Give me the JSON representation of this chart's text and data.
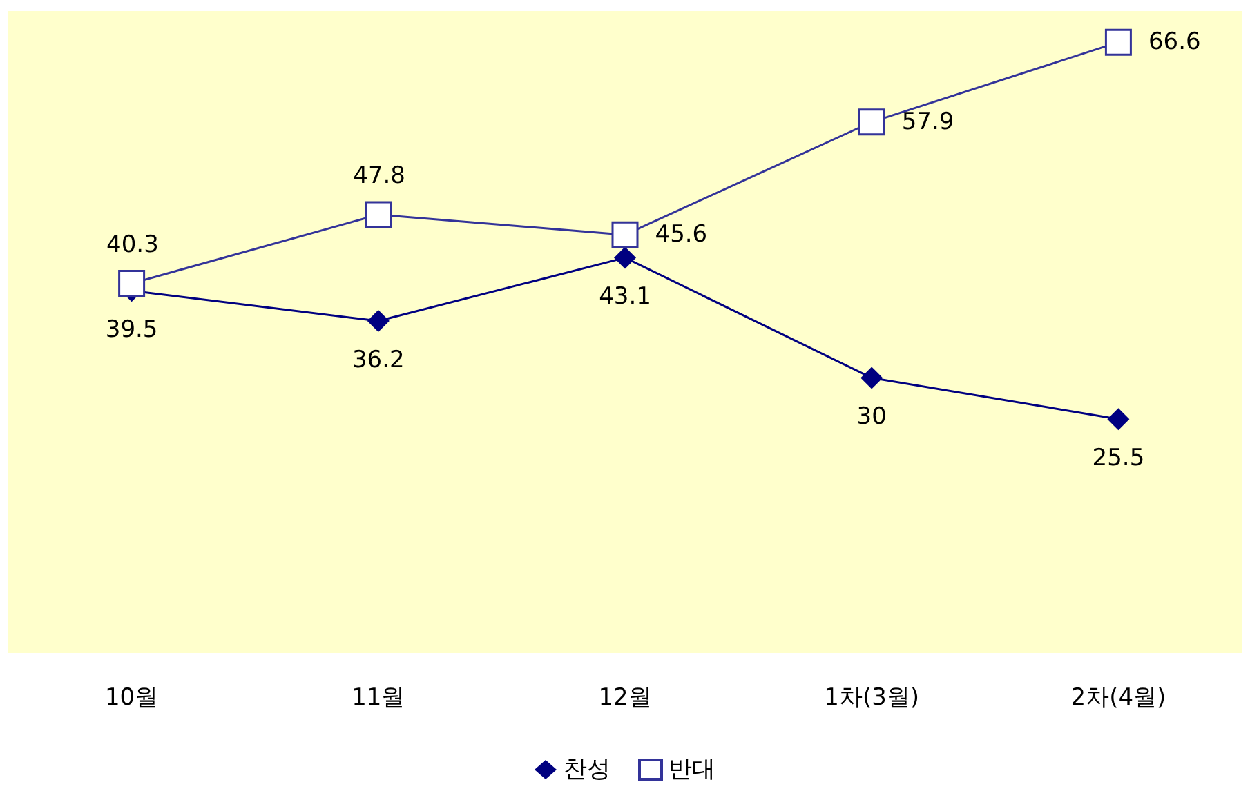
{
  "chart_data": {
    "type": "line",
    "categories": [
      "10월",
      "11월",
      "12월",
      "1차(3월)",
      "2차(4월)"
    ],
    "series": [
      {
        "name": "찬성",
        "color": "#000080",
        "marker": "diamond",
        "values": [
          39.5,
          36.2,
          43.1,
          30,
          25.5
        ]
      },
      {
        "name": "반대",
        "color": "#333399",
        "marker": "square",
        "values": [
          40.3,
          47.8,
          45.6,
          57.9,
          66.6
        ]
      }
    ],
    "data_labels": true,
    "legend": "bottom",
    "grid": false,
    "line_style": "solid"
  }
}
